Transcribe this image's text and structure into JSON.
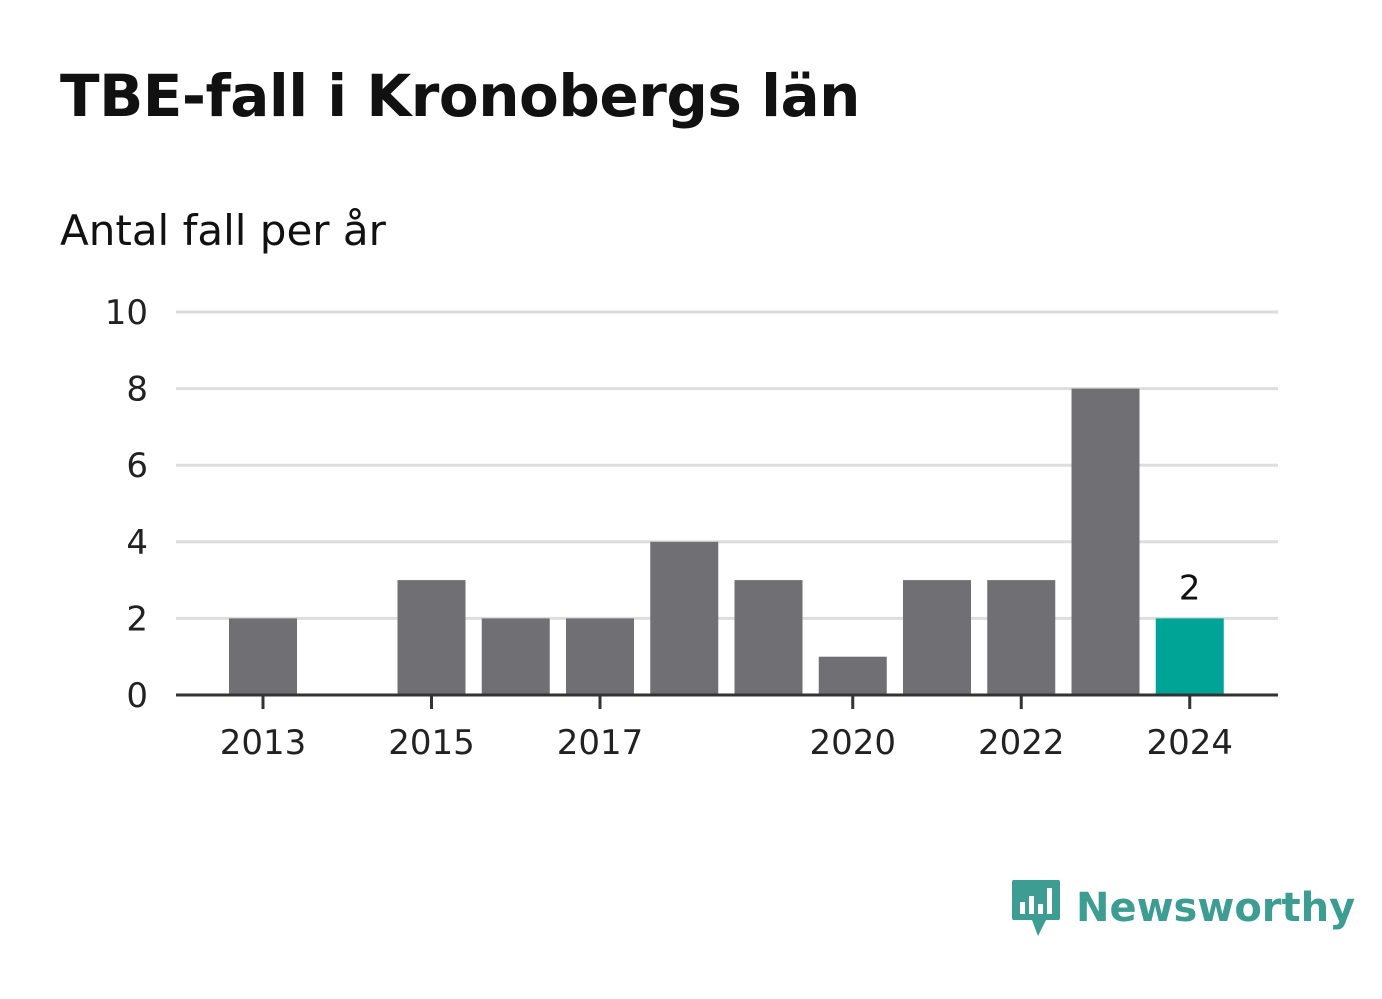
{
  "title": "TBE-fall i Kronobergs län",
  "subtitle": "Antal fall per år",
  "brand": {
    "name": "Newsworthy",
    "icon": "newsworthy-logo-icon"
  },
  "colors": {
    "bar": "#706f74",
    "highlight": "#00a497",
    "grid": "#dddddd",
    "axis": "#333333",
    "brand": "#3d9d92"
  },
  "chart_data": {
    "type": "bar",
    "x": [
      2013,
      2014,
      2015,
      2016,
      2017,
      2018,
      2019,
      2020,
      2021,
      2022,
      2023,
      2024
    ],
    "values": [
      2,
      0,
      3,
      2,
      2,
      4,
      3,
      1,
      3,
      3,
      8,
      2
    ],
    "xticks": [
      2013,
      2015,
      2017,
      2020,
      2022,
      2024
    ],
    "yticks": [
      0,
      2,
      4,
      6,
      8,
      10
    ],
    "ylim": [
      0,
      10
    ],
    "highlight": 2024,
    "data_labels": [
      {
        "x": 2024,
        "text": "2"
      }
    ],
    "grid": true,
    "xlabel": "",
    "ylabel": ""
  }
}
